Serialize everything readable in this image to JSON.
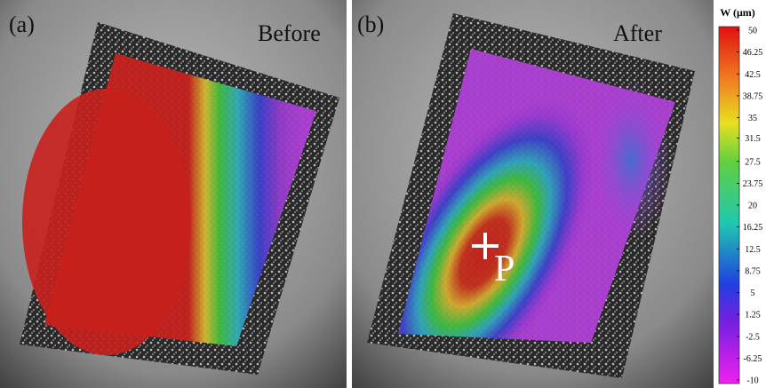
{
  "panels": [
    {
      "label": "(a)",
      "title": "Before"
    },
    {
      "label": "(b)",
      "title": "After",
      "marker": "P"
    }
  ],
  "colorbar": {
    "title": "W (μm)",
    "lim": [
      -10,
      50
    ],
    "ticks": [
      50,
      46.25,
      42.5,
      38.75,
      35,
      31.5,
      27.5,
      23.75,
      20,
      16.25,
      12.5,
      8.75,
      5,
      1.25,
      -2.5,
      -6.25,
      -10
    ]
  }
}
